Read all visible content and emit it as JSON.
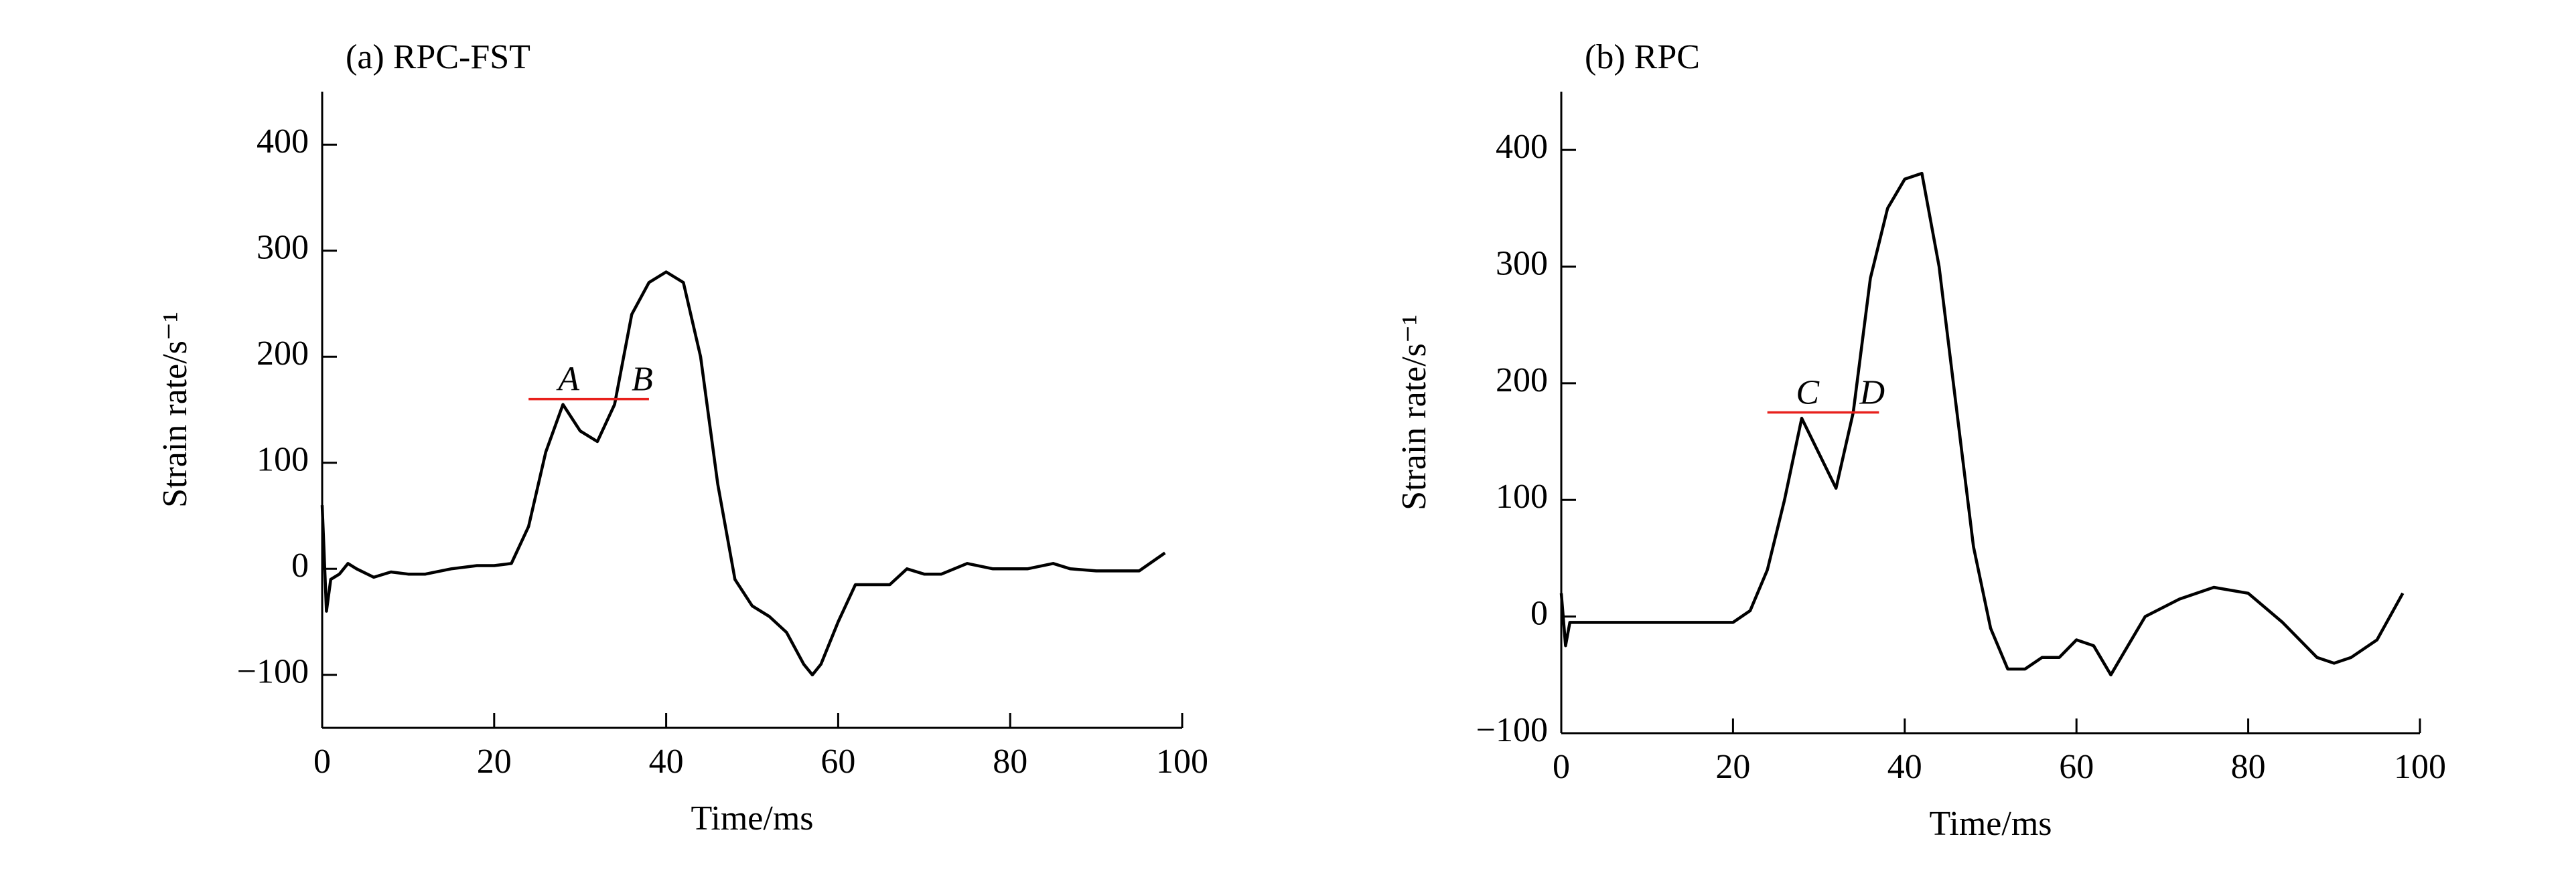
{
  "chart_data": [
    {
      "type": "line",
      "title": "(a) RPC-FST",
      "xlabel": "Time/ms",
      "ylabel": "Strain rate/s⁻¹",
      "x": [
        0,
        0.5,
        1,
        2,
        3,
        4,
        6,
        8,
        10,
        12,
        15,
        18,
        20,
        22,
        24,
        26,
        28,
        30,
        32,
        34,
        36,
        38,
        40,
        42,
        44,
        46,
        48,
        50,
        52,
        54,
        56,
        57,
        58,
        60,
        62,
        64,
        66,
        68,
        70,
        72,
        75,
        78,
        80,
        82,
        85,
        87,
        90,
        92,
        95,
        98
      ],
      "series": [
        {
          "name": "RPC-FST",
          "color": "#000000",
          "values": [
            60,
            -40,
            -10,
            -5,
            5,
            0,
            -8,
            -3,
            -5,
            -5,
            0,
            3,
            3,
            5,
            40,
            110,
            155,
            130,
            120,
            155,
            240,
            270,
            280,
            270,
            200,
            80,
            -10,
            -35,
            -45,
            -60,
            -90,
            -100,
            -90,
            -50,
            -15,
            -15,
            -15,
            0,
            -5,
            -5,
            5,
            0,
            0,
            0,
            5,
            0,
            -2,
            -2,
            -2,
            15
          ]
        }
      ],
      "xlim": [
        0,
        100
      ],
      "xticks": [
        0,
        20,
        40,
        60,
        80,
        100
      ],
      "ylim": [
        -150,
        450
      ],
      "yticks": [
        {
          "value": -100,
          "label": "−100"
        },
        0,
        100,
        200,
        300,
        400
      ],
      "reference_line": {
        "y": 160,
        "x": [
          24,
          38
        ],
        "color": "#e8201c",
        "labels": [
          "A",
          "B"
        ]
      }
    },
    {
      "type": "line",
      "title": "(b) RPC",
      "xlabel": "Time/ms",
      "ylabel": "Strain rate/s⁻¹",
      "x": [
        0,
        0.5,
        1,
        2,
        4,
        6,
        10,
        15,
        20,
        22,
        24,
        26,
        28,
        30,
        32,
        34,
        36,
        38,
        40,
        42,
        44,
        46,
        48,
        50,
        52,
        54,
        56,
        58,
        60,
        62,
        64,
        66,
        68,
        72,
        76,
        80,
        84,
        88,
        90,
        92,
        95,
        98
      ],
      "series": [
        {
          "name": "RPC",
          "color": "#000000",
          "values": [
            20,
            -25,
            -5,
            -5,
            -5,
            -5,
            -5,
            -5,
            -5,
            5,
            40,
            100,
            170,
            140,
            110,
            175,
            290,
            350,
            375,
            380,
            300,
            180,
            60,
            -10,
            -45,
            -45,
            -35,
            -35,
            -20,
            -25,
            -50,
            -25,
            0,
            15,
            25,
            20,
            -5,
            -35,
            -40,
            -35,
            -20,
            20
          ]
        }
      ],
      "xlim": [
        0,
        100
      ],
      "xticks": [
        0,
        20,
        40,
        60,
        80,
        100
      ],
      "ylim": [
        -100,
        450
      ],
      "yticks": [
        {
          "value": -100,
          "label": "−100"
        },
        0,
        100,
        200,
        300,
        400
      ],
      "reference_line": {
        "y": 175,
        "x": [
          24,
          37
        ],
        "color": "#e8201c",
        "labels": [
          "C",
          "D"
        ]
      }
    }
  ]
}
